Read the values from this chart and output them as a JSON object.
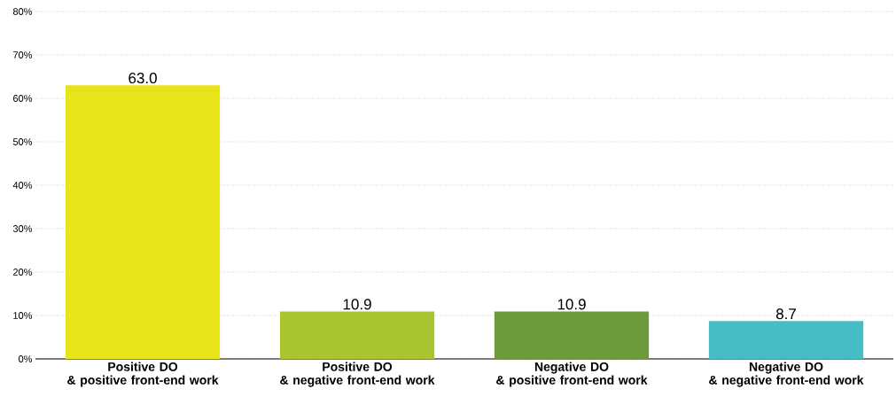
{
  "chart_data": {
    "type": "bar",
    "categories": [
      "Positive DO\n& positive front-end work",
      "Positive DO\n& negative front-end work",
      "Negative DO\n& positive front-end work",
      "Negative DO\n& negative front-end work"
    ],
    "values": [
      63.0,
      10.9,
      10.9,
      8.7
    ],
    "colors": [
      "#e8e41a",
      "#a9c52f",
      "#6b9b3b",
      "#46bdc4"
    ],
    "value_labels": [
      "63.0",
      "10.9",
      "10.9",
      "8.7"
    ],
    "ylim": [
      0,
      80
    ],
    "yticks": [
      {
        "value": 0,
        "label": "0%"
      },
      {
        "value": 10,
        "label": "10%"
      },
      {
        "value": 20,
        "label": "20%"
      },
      {
        "value": 30,
        "label": "30%"
      },
      {
        "value": 40,
        "label": "40%"
      },
      {
        "value": 50,
        "label": "50%"
      },
      {
        "value": 60,
        "label": "60%"
      },
      {
        "value": 70,
        "label": "70%"
      },
      {
        "value": 80,
        "label": "80%"
      }
    ],
    "grid": "y"
  }
}
